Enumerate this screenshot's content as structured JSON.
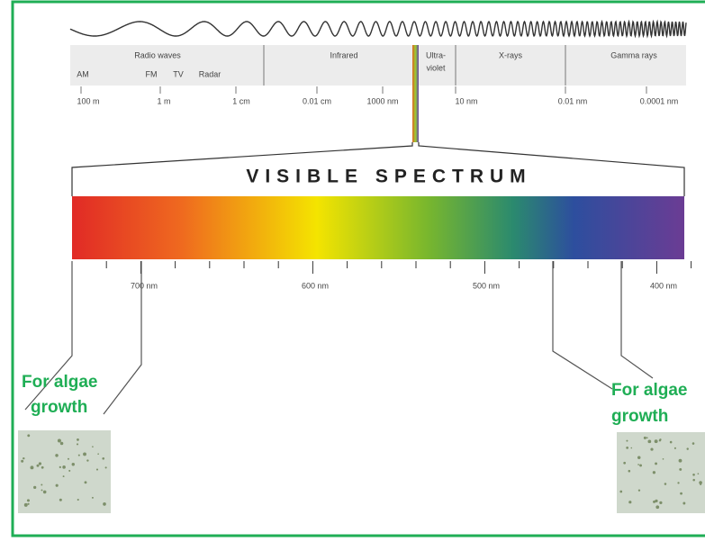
{
  "spectrum": {
    "regions": {
      "radio": "Radio waves",
      "am": "AM",
      "fm": "FM",
      "tv": "TV",
      "radar": "Radar",
      "infrared": "Infrared",
      "uv_line1": "Ultra-",
      "uv_line2": "violet",
      "xrays": "X-rays",
      "gamma": "Gamma rays"
    },
    "scale": [
      "100 m",
      "1 m",
      "1 cm",
      "0.01 cm",
      "1000 nm",
      "10 nm",
      "0.01 nm",
      "0.0001 nm"
    ]
  },
  "visible": {
    "title": "VISIBLE SPECTRUM",
    "scale": [
      "700 nm",
      "600 nm",
      "500 nm",
      "400 nm"
    ]
  },
  "callouts": [
    {
      "line1": "For algae",
      "line2": "growth"
    },
    {
      "line1": "For algae",
      "line2": "growth"
    }
  ]
}
